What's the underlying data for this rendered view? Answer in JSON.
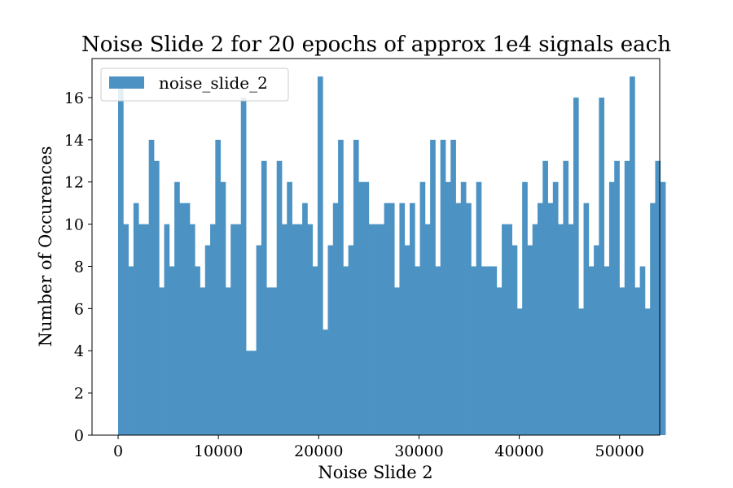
{
  "chart_data": {
    "type": "bar",
    "title": "Noise Slide 2 for 20 epochs of approx 1e4 signals each",
    "xlabel": "Noise Slide 2",
    "ylabel": "Number of Occurences",
    "xlim": [
      -2600,
      54000
    ],
    "ylim": [
      0,
      17.85
    ],
    "xticks": [
      0,
      10000,
      20000,
      30000,
      40000,
      50000
    ],
    "yticks": [
      0,
      2,
      4,
      6,
      8,
      10,
      12,
      14,
      16
    ],
    "bin_start": 0,
    "bin_width": 510,
    "color": "#4c93c4",
    "legend": {
      "position": "top-left",
      "label": "noise_slide_2"
    },
    "grid": false,
    "series": [
      {
        "name": "noise_slide_2",
        "values": [
          17,
          10,
          8,
          11,
          10,
          10,
          14,
          13,
          7,
          10,
          8,
          12,
          11,
          11,
          10,
          8,
          7,
          9,
          10,
          14,
          12,
          7,
          10,
          10,
          16,
          4,
          4,
          9,
          13,
          7,
          7,
          13,
          10,
          12,
          10,
          10,
          11,
          10,
          8,
          17,
          5,
          9,
          11,
          14,
          8,
          9,
          14,
          12,
          12,
          10,
          10,
          10,
          11,
          11,
          7,
          11,
          9,
          11,
          8,
          12,
          10,
          14,
          8,
          14,
          12,
          14,
          11,
          12,
          11,
          8,
          12,
          8,
          8,
          8,
          7,
          10,
          10,
          9,
          6,
          12,
          9,
          10,
          11,
          13,
          11,
          12,
          10,
          13,
          10,
          16,
          6,
          11,
          8,
          9,
          16,
          8,
          12,
          13,
          7,
          13,
          17,
          7,
          8,
          6,
          11,
          13,
          12
        ]
      }
    ]
  }
}
